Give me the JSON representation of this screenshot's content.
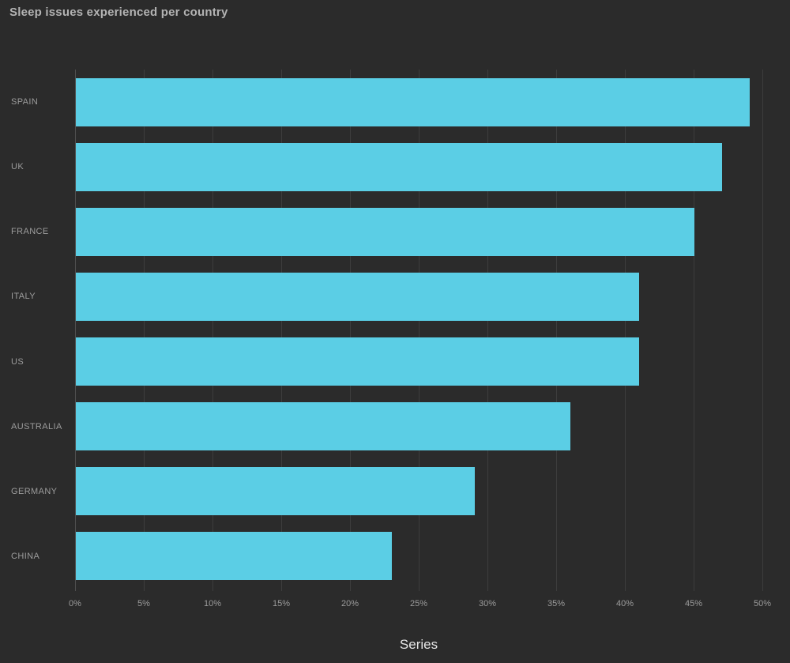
{
  "title": "Sleep issues experienced per country",
  "xaxis_title": "Series",
  "colors": {
    "background": "#2b2b2b",
    "bar": "#5bcee5",
    "gridline": "#3d3d3d",
    "axis_line": "#505050",
    "title_text": "#b3b3b3",
    "label_text": "#9c9c9c",
    "axis_title_text": "#e6e6e6"
  },
  "chart_data": {
    "type": "bar",
    "orientation": "horizontal",
    "title": "Sleep issues experienced per country",
    "categories": [
      "SPAIN",
      "UK",
      "FRANCE",
      "ITALY",
      "US",
      "AUSTRALIA",
      "GERMANY",
      "CHINA"
    ],
    "values": [
      49,
      47,
      45,
      41,
      41,
      36,
      29,
      23
    ],
    "series_name": "Series",
    "xlabel": "Series",
    "ylabel": "",
    "unit": "%",
    "x_ticks": [
      "0%",
      "5%",
      "10%",
      "15%",
      "20%",
      "25%",
      "30%",
      "35%",
      "40%",
      "45%",
      "50%"
    ],
    "x_tick_values": [
      0,
      5,
      10,
      15,
      20,
      25,
      30,
      35,
      40,
      45,
      50
    ],
    "xlim": [
      0,
      50
    ],
    "grid": true,
    "legend": "none"
  }
}
